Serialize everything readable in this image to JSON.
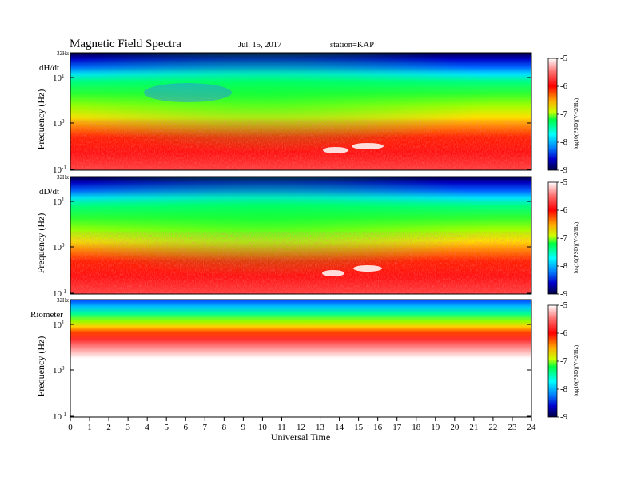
{
  "header": {
    "title": "Magnetic Field Spectra",
    "date": "Jul. 15, 2017",
    "station": "station=KAP"
  },
  "chart_data": {
    "type": "heatmap",
    "xlabel": "Universal Time",
    "x_ticks": [
      "0",
      "1",
      "2",
      "3",
      "4",
      "5",
      "6",
      "7",
      "8",
      "9",
      "10",
      "11",
      "12",
      "13",
      "14",
      "15",
      "16",
      "17",
      "18",
      "19",
      "20",
      "21",
      "22",
      "23",
      "24"
    ],
    "xlim": [
      0,
      24
    ],
    "colorbar": {
      "ticks": [
        "-5",
        "-6",
        "-7",
        "-8",
        "-9"
      ],
      "range": [
        -9,
        -5
      ],
      "label": "log10(PSD)(V^2/Hz)",
      "colors": [
        "#000055",
        "#0000ff",
        "#0090ff",
        "#00ffff",
        "#00ff66",
        "#66ff00",
        "#ffff00",
        "#ff8000",
        "#ff0000",
        "#ff6060",
        "#ffffff"
      ]
    },
    "panels": [
      {
        "name": "dH/dt",
        "ylabel": "Frequency (Hz)",
        "y_top_label": "32Hz",
        "y_ticks": [
          "10^1",
          "10^0",
          "10^-1"
        ]
      },
      {
        "name": "dD/dt",
        "ylabel": "Frequency (Hz)",
        "y_top_label": "32Hz",
        "y_ticks": [
          "10^1",
          "10^0",
          "10^-1"
        ]
      },
      {
        "name": "Riometer",
        "ylabel": "Frequency (Hz)",
        "y_top_label": "32Hz",
        "y_ticks": [
          "10^1",
          "10^0",
          "10^-1"
        ]
      }
    ]
  }
}
